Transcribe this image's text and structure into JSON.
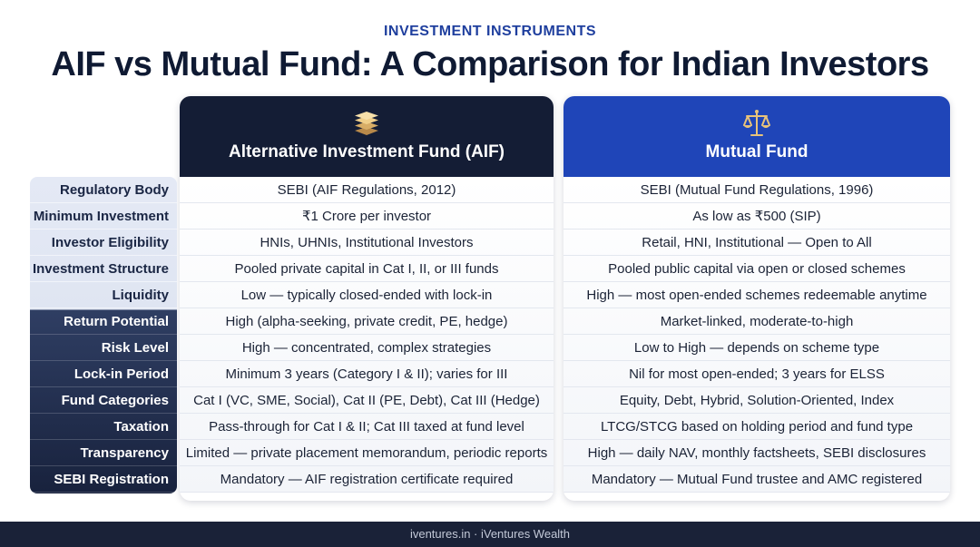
{
  "header": {
    "eyebrow": "INVESTMENT INSTRUMENTS",
    "title": "AIF vs Mutual Fund: A Comparison for Indian Investors"
  },
  "columns": {
    "aif": {
      "title": "Alternative Investment Fund (AIF)",
      "icon": "layers-icon",
      "color": "#141d35"
    },
    "mf": {
      "title": "Mutual Fund",
      "icon": "scales-icon",
      "color": "#1f45b8"
    }
  },
  "rows": [
    {
      "label": "Regulatory Body",
      "aif": "SEBI (AIF Regulations, 2012)",
      "mf": "SEBI (Mutual Fund Regulations, 1996)"
    },
    {
      "label": "Minimum Investment",
      "aif": "₹1 Crore per investor",
      "mf": "As low as ₹500 (SIP)"
    },
    {
      "label": "Investor Eligibility",
      "aif": "HNIs, UHNIs, Institutional Investors",
      "mf": "Retail, HNI, Institutional — Open to All"
    },
    {
      "label": "Investment Structure",
      "aif": "Pooled private capital in Cat I, II, or III funds",
      "mf": "Pooled public capital via open or closed schemes"
    },
    {
      "label": "Liquidity",
      "aif": "Low — typically closed-ended with lock-in",
      "mf": "High — most open-ended schemes redeemable anytime"
    },
    {
      "label": "Return Potential",
      "aif": "High (alpha-seeking, private credit, PE, hedge)",
      "mf": "Market-linked, moderate-to-high"
    },
    {
      "label": "Risk Level",
      "aif": "High — concentrated, complex strategies",
      "mf": "Low to High — depends on scheme type"
    },
    {
      "label": "Lock-in Period",
      "aif": "Minimum 3 years (Category I & II); varies for III",
      "mf": "Nil for most open-ended; 3 years for ELSS"
    },
    {
      "label": "Fund Categories",
      "aif": "Cat I (VC, SME, Social), Cat II (PE, Debt), Cat III (Hedge)",
      "mf": "Equity, Debt, Hybrid, Solution-Oriented, Index"
    },
    {
      "label": "Taxation",
      "aif": "Pass-through for Cat I & II; Cat III taxed at fund level",
      "mf": "LTCG/STCG based on holding period and fund type"
    },
    {
      "label": "Transparency",
      "aif": "Limited — private placement memorandum, periodic reports",
      "mf": "High — daily NAV, monthly factsheets, SEBI disclosures"
    },
    {
      "label": "SEBI Registration",
      "aif": "Mandatory — AIF registration certificate required",
      "mf": "Mandatory — Mutual Fund trustee and AMC registered"
    }
  ],
  "footer": {
    "text": "iventures.in · iVentures Wealth"
  }
}
